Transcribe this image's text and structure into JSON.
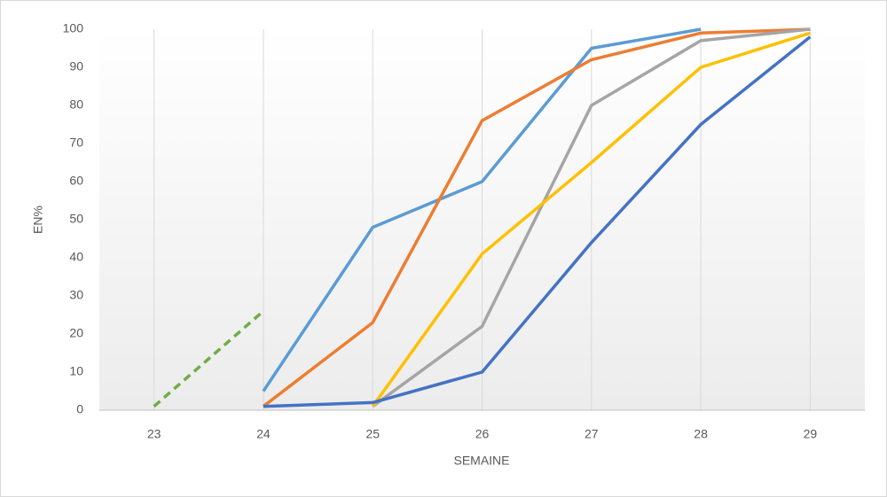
{
  "chart_data": {
    "type": "line",
    "x_label": "SEMAINE",
    "y_label": "EN%",
    "x": [
      23,
      24,
      25,
      26,
      27,
      28,
      29
    ],
    "xlim": [
      22.5,
      29.5
    ],
    "xticks": [
      23,
      24,
      25,
      26,
      27,
      28,
      29
    ],
    "ylim": [
      0,
      100
    ],
    "yticks": [
      0,
      10,
      20,
      30,
      40,
      50,
      60,
      70,
      80,
      90,
      100
    ],
    "grid": "x",
    "series": [
      {
        "color": "#5b9bd5",
        "values": [
          null,
          5,
          48,
          60,
          95,
          100,
          null
        ]
      },
      {
        "color": "#ed7d31",
        "values": [
          null,
          1,
          23,
          76,
          92,
          99,
          100
        ]
      },
      {
        "color": "#a5a5a5",
        "values": [
          null,
          null,
          1,
          22,
          80,
          97,
          100
        ]
      },
      {
        "color": "#ffc000",
        "values": [
          null,
          null,
          1,
          41,
          65,
          90,
          99
        ]
      },
      {
        "color": "#4472c4",
        "values": [
          null,
          1,
          2,
          10,
          44,
          75,
          98
        ]
      },
      {
        "color": "#70ad47",
        "dashed": true,
        "values": [
          1,
          26,
          null,
          null,
          null,
          null,
          null
        ]
      }
    ]
  }
}
